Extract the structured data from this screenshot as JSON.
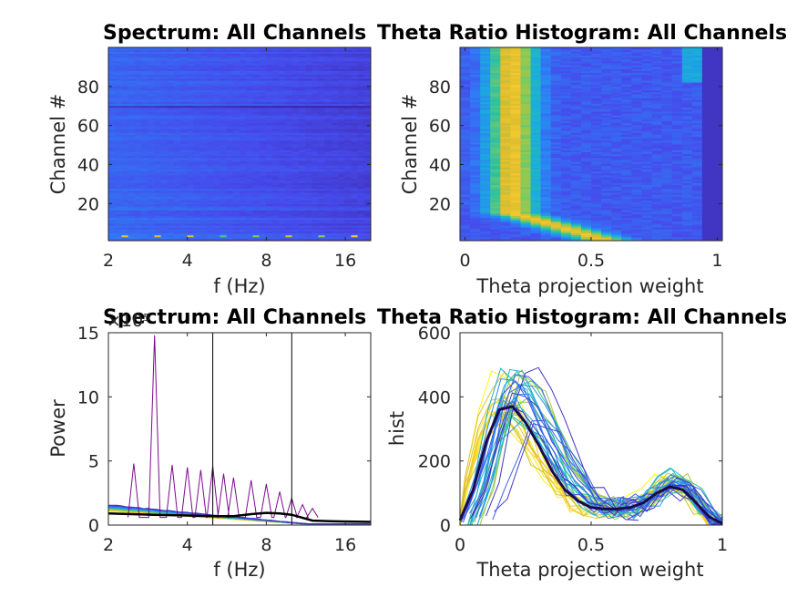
{
  "colors": {
    "axis": "#262626",
    "background": "#ffffff",
    "parula_low": "#3e26a8",
    "parula_high": "#f9fb0e"
  },
  "chart_data": [
    {
      "type": "heatmap",
      "title": "Spectrum: All Channels",
      "xlabel": "f (Hz)",
      "ylabel": "Channel #",
      "x_scale": "log2",
      "xlim": [
        2,
        20
      ],
      "ylim": [
        1,
        100
      ],
      "xticks": [
        2,
        4,
        8,
        16
      ],
      "xticklabels": [
        "2",
        "4",
        "8",
        "16"
      ],
      "yticks": [
        20,
        40,
        60,
        80
      ],
      "yticklabels": [
        "20",
        "40",
        "60",
        "80"
      ],
      "description_values": {
        "channels": 100,
        "typical_level": 0.15,
        "bright_row_channel": 70,
        "bright_bottom_channels": [
          2,
          3,
          4,
          12,
          17
        ],
        "peak_frequency_channel_3": 3
      }
    },
    {
      "type": "heatmap",
      "title": "Theta Ratio Histogram: All Channels",
      "xlabel": "Theta projection weight",
      "ylabel": "Channel #",
      "xlim": [
        -0.02,
        1.02
      ],
      "ylim": [
        1,
        100
      ],
      "xticks": [
        0,
        0.5,
        1
      ],
      "xticklabels": [
        "0",
        "0.5",
        "1"
      ],
      "yticks": [
        20,
        40,
        60,
        80
      ],
      "yticklabels": [
        "20",
        "40",
        "60",
        "80"
      ],
      "bright_column_center": 0.2,
      "step_channel": 83
    },
    {
      "type": "line",
      "title": "Spectrum: All Channels",
      "xlabel": "f (Hz)",
      "ylabel": "Power",
      "x_scale": "log2",
      "xlim": [
        2,
        20
      ],
      "ylim": [
        0,
        15
      ],
      "y_exponent_label": "×10⁵",
      "xticks": [
        2,
        4,
        8,
        16
      ],
      "xticklabels": [
        "2",
        "4",
        "8",
        "16"
      ],
      "yticks": [
        0,
        5,
        10,
        15
      ],
      "yticklabels": [
        "0",
        "5",
        "10",
        "15"
      ],
      "vertical_lines": [
        5,
        10
      ],
      "peak_series": {
        "base_freq": 3.0,
        "harmonic_freqs": [
          2.5,
          3.0,
          3.5,
          4.0,
          4.5,
          5.0,
          5.5,
          6.0,
          7.0,
          8.0,
          9.0,
          10.0,
          11.0,
          12.0
        ],
        "peak_values": [
          4.8,
          14.8,
          4.7,
          4.5,
          4.3,
          4.6,
          4.0,
          3.7,
          3.5,
          3.2,
          2.6,
          2.1,
          1.6,
          1.3
        ]
      },
      "mean_curve": {
        "x": [
          2,
          3,
          4,
          5,
          6,
          7,
          8,
          9,
          10,
          12,
          14,
          16,
          20
        ],
        "y": [
          0.9,
          0.8,
          0.75,
          0.7,
          0.7,
          0.85,
          0.95,
          0.9,
          0.8,
          0.35,
          0.3,
          0.28,
          0.25
        ]
      }
    },
    {
      "type": "line",
      "title": "Theta Ratio Histogram: All Channels",
      "xlabel": "Theta projection weight",
      "ylabel": "hist",
      "xlim": [
        0,
        1
      ],
      "ylim": [
        0,
        600
      ],
      "xticks": [
        0,
        0.5,
        1
      ],
      "xticklabels": [
        "0",
        "0.5",
        "1"
      ],
      "yticks": [
        0,
        200,
        400,
        600
      ],
      "yticklabels": [
        "0",
        "200",
        "400",
        "600"
      ],
      "mean_curve": {
        "x": [
          0,
          0.05,
          0.1,
          0.15,
          0.2,
          0.25,
          0.3,
          0.35,
          0.4,
          0.45,
          0.5,
          0.55,
          0.6,
          0.65,
          0.7,
          0.75,
          0.8,
          0.85,
          0.9,
          0.95,
          1
        ],
        "y": [
          15,
          110,
          260,
          360,
          370,
          320,
          250,
          170,
          110,
          75,
          55,
          50,
          50,
          55,
          70,
          100,
          120,
          110,
          70,
          25,
          5
        ]
      }
    }
  ]
}
